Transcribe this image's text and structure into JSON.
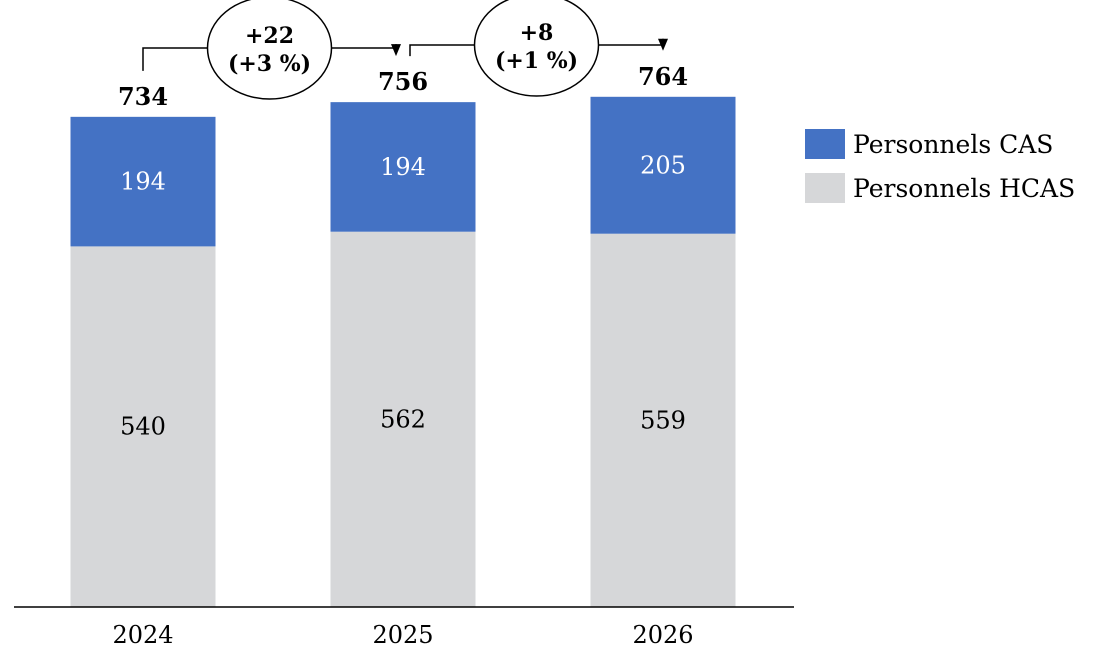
{
  "chart_data": {
    "type": "bar",
    "stacked": true,
    "categories": [
      "2024",
      "2025",
      "2026"
    ],
    "series": [
      {
        "name": "Personnels HCAS",
        "values": [
          540,
          562,
          559
        ],
        "color": "#d6d7d9",
        "label_color": "#000000"
      },
      {
        "name": "Personnels CAS",
        "values": [
          194,
          194,
          205
        ],
        "color": "#4472c4",
        "label_color": "#ffffff"
      }
    ],
    "totals": [
      734,
      756,
      764
    ],
    "variations": [
      {
        "from": "2024",
        "to": "2025",
        "line1": "+22",
        "line2": "(+3 %)"
      },
      {
        "from": "2025",
        "to": "2026",
        "line1": "+8",
        "line2": "(+1 %)"
      }
    ],
    "legend": {
      "position": "right",
      "entries": [
        "Personnels CAS",
        "Personnels HCAS"
      ]
    },
    "grid": false,
    "ylim": [
      0,
      800
    ]
  }
}
